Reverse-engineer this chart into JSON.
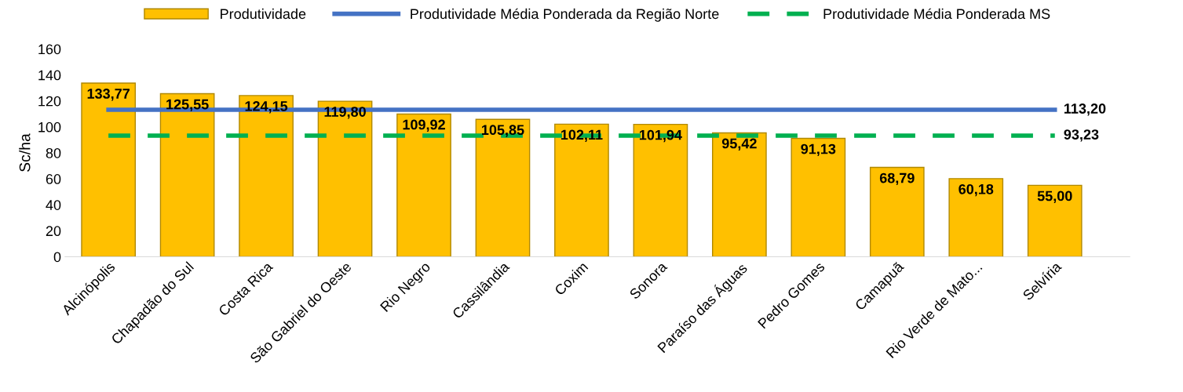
{
  "chart_data": {
    "type": "bar",
    "ylabel": "Sc/ha",
    "categories": [
      "Alcinópolis",
      "Chapadão do Sul",
      "Costa Rica",
      "São Gabriel do Oeste",
      "Rio Negro",
      "Cassilândia",
      "Coxim",
      "Sonora",
      "Paraíso das Águas",
      "Pedro Gomes",
      "Camapuã",
      "Rio Verde de Mato...",
      "Selvíria"
    ],
    "series": [
      {
        "name": "Produtividade",
        "color": "#ffc000",
        "values": [
          133.77,
          125.55,
          124.15,
          119.8,
          109.92,
          105.85,
          102.11,
          101.94,
          95.42,
          91.13,
          68.79,
          60.18,
          55.0
        ],
        "value_labels": [
          "133,77",
          "125,55",
          "124,15",
          "119,80",
          "109,92",
          "105,85",
          "102,11",
          "101,94",
          "95,42",
          "91,13",
          "68,79",
          "60,18",
          "55,00"
        ]
      },
      {
        "type": "line",
        "name": "Produtividade Média Ponderada da Região Norte",
        "color": "#4472c4",
        "line_style": "solid",
        "values": [
          113.2,
          113.2,
          113.2,
          113.2,
          113.2,
          113.2,
          113.2,
          113.2,
          113.2,
          113.2,
          113.2,
          113.2,
          113.2
        ],
        "value_labels": [
          null,
          null,
          null,
          null,
          null,
          null,
          null,
          null,
          null,
          null,
          null,
          null,
          "113,20"
        ]
      },
      {
        "type": "line",
        "name": "Produtividade Média Ponderada MS",
        "color": "#00b050",
        "line_style": "dashed",
        "values": [
          93.23,
          93.23,
          93.23,
          93.23,
          93.23,
          93.23,
          93.23,
          93.23,
          93.23,
          93.23,
          93.23,
          93.23,
          93.23
        ],
        "value_labels": [
          null,
          null,
          null,
          null,
          null,
          null,
          null,
          null,
          null,
          null,
          null,
          null,
          "93,23"
        ]
      }
    ],
    "ylim": [
      0,
      160
    ],
    "yticks": [
      0,
      20,
      40,
      60,
      80,
      100,
      120,
      140,
      160
    ],
    "grid": false,
    "legend": "top"
  }
}
